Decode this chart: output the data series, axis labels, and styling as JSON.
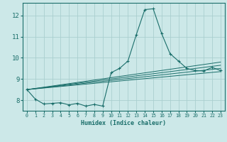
{
  "xlabel": "Humidex (Indice chaleur)",
  "bg_color": "#cce8e8",
  "grid_color": "#aacfcf",
  "line_color": "#1a6e6a",
  "xlim": [
    -0.5,
    23.5
  ],
  "ylim": [
    7.5,
    12.6
  ],
  "yticks": [
    8,
    9,
    10,
    11,
    12
  ],
  "xticks": [
    0,
    1,
    2,
    3,
    4,
    5,
    6,
    7,
    8,
    9,
    10,
    11,
    12,
    13,
    14,
    15,
    16,
    17,
    18,
    19,
    20,
    21,
    22,
    23
  ],
  "main_x": [
    0,
    1,
    2,
    3,
    4,
    5,
    6,
    7,
    8,
    9,
    10,
    11,
    12,
    13,
    14,
    15,
    16,
    17,
    18,
    19,
    20,
    21,
    22,
    23
  ],
  "main_y": [
    8.5,
    8.05,
    7.82,
    7.85,
    7.88,
    7.78,
    7.85,
    7.72,
    7.8,
    7.72,
    9.3,
    9.5,
    9.85,
    11.1,
    12.28,
    12.32,
    11.15,
    10.2,
    9.85,
    9.5,
    9.4,
    9.38,
    9.55,
    9.4
  ],
  "trend_lines": [
    {
      "x": [
        0,
        23
      ],
      "y": [
        8.5,
        9.35
      ]
    },
    {
      "x": [
        0,
        23
      ],
      "y": [
        8.5,
        9.5
      ]
    },
    {
      "x": [
        0,
        23
      ],
      "y": [
        8.5,
        9.65
      ]
    },
    {
      "x": [
        0,
        23
      ],
      "y": [
        8.5,
        9.8
      ]
    }
  ]
}
